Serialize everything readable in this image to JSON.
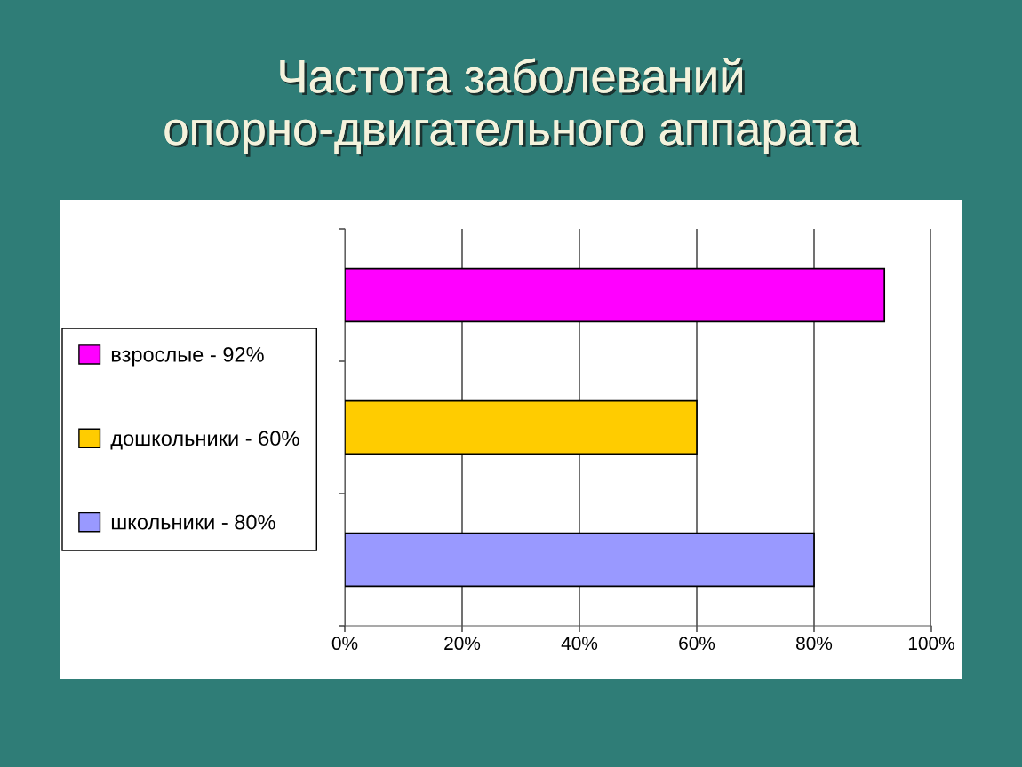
{
  "chart_data": {
    "type": "bar",
    "orientation": "horizontal",
    "title": "Частота заболеваний\nопорно-двигательного аппарата",
    "categories": [
      null,
      null,
      null
    ],
    "series": [
      {
        "name": "взрослые - 92%",
        "color": "#ff00ff",
        "values": [
          92,
          null,
          null
        ]
      },
      {
        "name": "дошкольники - 60%",
        "color": "#ffcc00",
        "values": [
          null,
          60,
          null
        ]
      },
      {
        "name": "школьники - 80%",
        "color": "#9999ff",
        "values": [
          null,
          null,
          80
        ]
      }
    ],
    "xlim": [
      0,
      100
    ],
    "xticks": [
      {
        "value": 0,
        "label": "0%"
      },
      {
        "value": 20,
        "label": "20%"
      },
      {
        "value": 40,
        "label": "40%"
      },
      {
        "value": 60,
        "label": "60%"
      },
      {
        "value": 80,
        "label": "80%"
      },
      {
        "value": 100,
        "label": "100%"
      }
    ],
    "grid": "x",
    "legend": "left"
  }
}
